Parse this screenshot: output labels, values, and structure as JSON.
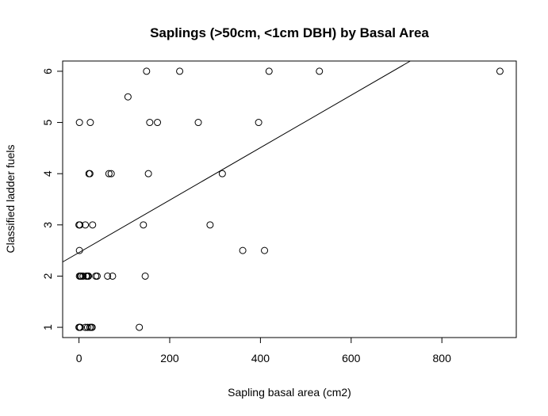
{
  "chart_data": {
    "type": "scatter",
    "title": "Saplings (>50cm, <1cm DBH) by Basal Area",
    "xlabel": "Sapling basal area (cm2)",
    "ylabel": "Classified ladder fuels",
    "xlim": [
      -36,
      964
    ],
    "ylim": [
      0.8,
      6.2
    ],
    "x_ticks": [
      0,
      200,
      400,
      600,
      800
    ],
    "y_ticks": [
      1,
      2,
      3,
      4,
      5,
      6
    ],
    "grid": false,
    "legend": "none",
    "regression_line": {
      "intercept": 2.46,
      "slope": 0.00512
    },
    "points": [
      {
        "x": 0,
        "y": 1
      },
      {
        "x": 1,
        "y": 1
      },
      {
        "x": 3,
        "y": 1
      },
      {
        "x": 14,
        "y": 1
      },
      {
        "x": 19,
        "y": 1
      },
      {
        "x": 24,
        "y": 1
      },
      {
        "x": 27,
        "y": 1
      },
      {
        "x": 29,
        "y": 1
      },
      {
        "x": 133,
        "y": 1
      },
      {
        "x": 1,
        "y": 2
      },
      {
        "x": 3,
        "y": 2
      },
      {
        "x": 5,
        "y": 2
      },
      {
        "x": 9,
        "y": 2
      },
      {
        "x": 16,
        "y": 2
      },
      {
        "x": 18,
        "y": 2
      },
      {
        "x": 20,
        "y": 2
      },
      {
        "x": 21,
        "y": 2
      },
      {
        "x": 37,
        "y": 2
      },
      {
        "x": 40,
        "y": 2
      },
      {
        "x": 63,
        "y": 2
      },
      {
        "x": 74,
        "y": 2
      },
      {
        "x": 146,
        "y": 2
      },
      {
        "x": 1,
        "y": 2.5
      },
      {
        "x": 361,
        "y": 2.5
      },
      {
        "x": 409,
        "y": 2.5
      },
      {
        "x": 0,
        "y": 3
      },
      {
        "x": 2,
        "y": 3
      },
      {
        "x": 14,
        "y": 3
      },
      {
        "x": 30,
        "y": 3
      },
      {
        "x": 142,
        "y": 3
      },
      {
        "x": 289,
        "y": 3
      },
      {
        "x": 22,
        "y": 4
      },
      {
        "x": 24,
        "y": 4
      },
      {
        "x": 66,
        "y": 4
      },
      {
        "x": 71,
        "y": 4
      },
      {
        "x": 153,
        "y": 4
      },
      {
        "x": 316,
        "y": 4
      },
      {
        "x": 1,
        "y": 5
      },
      {
        "x": 25,
        "y": 5
      },
      {
        "x": 156,
        "y": 5
      },
      {
        "x": 173,
        "y": 5
      },
      {
        "x": 263,
        "y": 5
      },
      {
        "x": 396,
        "y": 5
      },
      {
        "x": 108,
        "y": 5.5
      },
      {
        "x": 149,
        "y": 6
      },
      {
        "x": 222,
        "y": 6
      },
      {
        "x": 419,
        "y": 6
      },
      {
        "x": 530,
        "y": 6
      },
      {
        "x": 928,
        "y": 6
      }
    ]
  }
}
